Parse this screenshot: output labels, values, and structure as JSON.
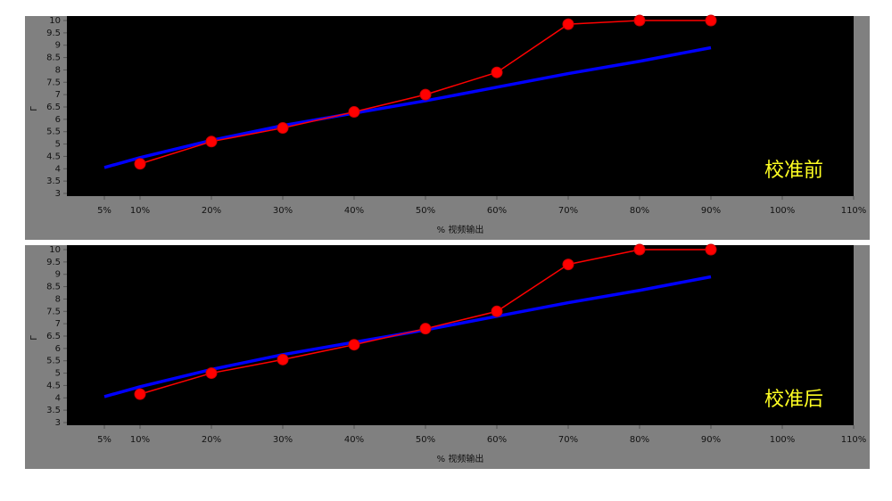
{
  "chart_data": [
    {
      "type": "line",
      "annotation": "校准前",
      "xlabel": "% 视频输出",
      "ylabel": "Γ",
      "xlim": [
        0,
        110
      ],
      "ylim": [
        3,
        10
      ],
      "xticks": [
        {
          "value": 5,
          "label": "5%"
        },
        {
          "value": 10,
          "label": "10%"
        },
        {
          "value": 20,
          "label": "20%"
        },
        {
          "value": 30,
          "label": "30%"
        },
        {
          "value": 40,
          "label": "40%"
        },
        {
          "value": 50,
          "label": "50%"
        },
        {
          "value": 60,
          "label": "60%"
        },
        {
          "value": 70,
          "label": "70%"
        },
        {
          "value": 80,
          "label": "80%"
        },
        {
          "value": 90,
          "label": "90%"
        },
        {
          "value": 100,
          "label": "100%"
        },
        {
          "value": 110,
          "label": "110%"
        }
      ],
      "yticks": [
        3,
        3.5,
        4,
        4.5,
        5,
        5.5,
        6,
        6.5,
        7,
        7.5,
        8,
        8.5,
        9,
        9.5,
        10
      ],
      "series": [
        {
          "color": "#0000ff",
          "markers": false,
          "x": [
            5,
            10,
            20,
            30,
            40,
            50,
            60,
            70,
            80,
            90
          ],
          "values": [
            4.05,
            4.45,
            5.15,
            5.75,
            6.25,
            6.75,
            7.3,
            7.85,
            8.35,
            8.9
          ]
        },
        {
          "color": "#ff0000",
          "markers": true,
          "x": [
            10,
            20,
            30,
            40,
            50,
            60,
            70,
            80,
            90
          ],
          "values": [
            4.2,
            5.1,
            5.65,
            6.3,
            7.0,
            7.9,
            9.85,
            10,
            10
          ]
        }
      ]
    },
    {
      "type": "line",
      "annotation": "校准后",
      "xlabel": "% 视频输出",
      "ylabel": "Γ",
      "xlim": [
        0,
        110
      ],
      "ylim": [
        3,
        10
      ],
      "xticks": [
        {
          "value": 5,
          "label": "5%"
        },
        {
          "value": 10,
          "label": "10%"
        },
        {
          "value": 20,
          "label": "20%"
        },
        {
          "value": 30,
          "label": "30%"
        },
        {
          "value": 40,
          "label": "40%"
        },
        {
          "value": 50,
          "label": "50%"
        },
        {
          "value": 60,
          "label": "60%"
        },
        {
          "value": 70,
          "label": "70%"
        },
        {
          "value": 80,
          "label": "80%"
        },
        {
          "value": 90,
          "label": "90%"
        },
        {
          "value": 100,
          "label": "100%"
        },
        {
          "value": 110,
          "label": "110%"
        }
      ],
      "yticks": [
        3,
        3.5,
        4,
        4.5,
        5,
        5.5,
        6,
        6.5,
        7,
        7.5,
        8,
        8.5,
        9,
        9.5,
        10
      ],
      "series": [
        {
          "color": "#0000ff",
          "markers": false,
          "x": [
            5,
            10,
            20,
            30,
            40,
            50,
            60,
            70,
            80,
            90
          ],
          "values": [
            4.05,
            4.45,
            5.15,
            5.75,
            6.25,
            6.75,
            7.3,
            7.85,
            8.35,
            8.9
          ]
        },
        {
          "color": "#ff0000",
          "markers": true,
          "x": [
            10,
            20,
            30,
            40,
            50,
            60,
            70,
            80,
            90
          ],
          "values": [
            4.15,
            5.0,
            5.55,
            6.15,
            6.8,
            7.5,
            9.4,
            10,
            10
          ]
        }
      ]
    }
  ]
}
